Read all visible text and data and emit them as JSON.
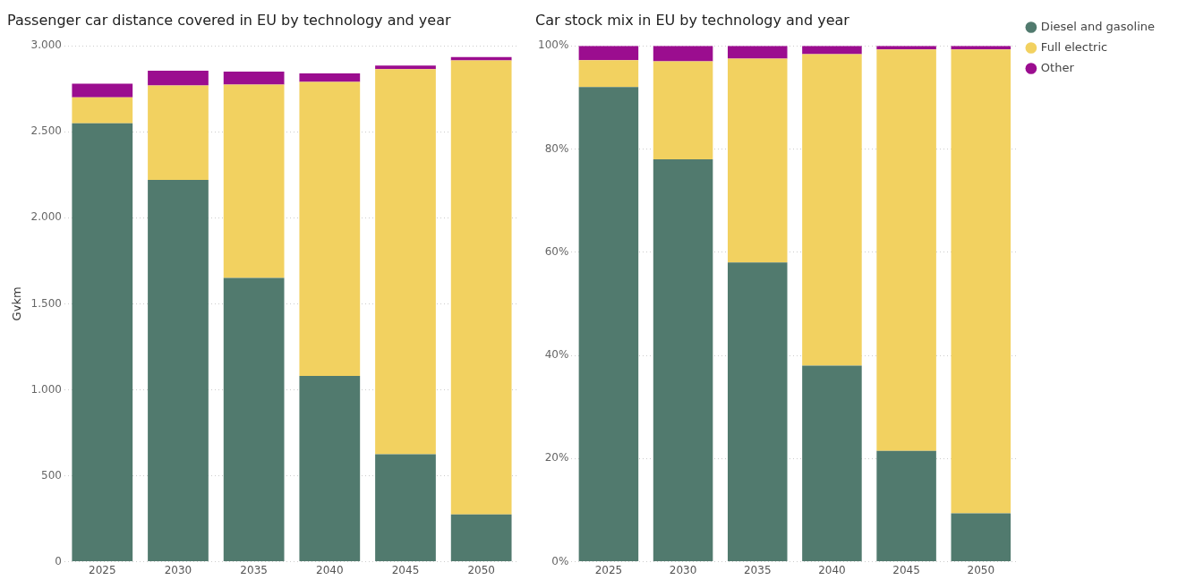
{
  "chart_data": [
    {
      "type": "bar",
      "title": "Passenger car distance covered in EU by technology and year",
      "ylabel": "Gvkm",
      "categories": [
        "2025",
        "2030",
        "2035",
        "2040",
        "2045",
        "2050"
      ],
      "stacked": true,
      "ylim": [
        0,
        3000
      ],
      "yticks": [
        0,
        {
          "value": 500,
          "label": "500"
        },
        {
          "value": 1000,
          "label": "1.000"
        },
        {
          "value": 1500,
          "label": "1.500"
        },
        {
          "value": 2000,
          "label": "2.000"
        },
        {
          "value": 2500,
          "label": "2.500"
        },
        {
          "value": 3000,
          "label": "3.000"
        }
      ],
      "grid": "y",
      "legend": false,
      "series": [
        {
          "color": "#517a6e",
          "values": [
            2550,
            2220,
            1650,
            1080,
            625,
            275
          ]
        },
        {
          "color": "#f2d160",
          "values": [
            150,
            550,
            1125,
            1710,
            2240,
            2640
          ]
        },
        {
          "color": "#9b0d8f",
          "values": [
            80,
            85,
            75,
            50,
            20,
            20
          ]
        }
      ]
    },
    {
      "type": "bar",
      "title": "Car stock mix in EU by technology and year",
      "categories": [
        "2025",
        "2030",
        "2035",
        "2040",
        "2045",
        "2050"
      ],
      "stacked": true,
      "ylim": [
        0,
        100
      ],
      "yticks": [
        {
          "value": 0,
          "label": "0%"
        },
        {
          "value": 20,
          "label": "20%"
        },
        {
          "value": 40,
          "label": "40%"
        },
        {
          "value": 60,
          "label": "60%"
        },
        {
          "value": 80,
          "label": "80%"
        },
        {
          "value": 100,
          "label": "100%"
        }
      ],
      "grid": "y",
      "legend": "top right",
      "series": [
        {
          "name": "Diesel and gasoline",
          "color": "#517a6e",
          "values": [
            92,
            78,
            58,
            38,
            21.5,
            9.4
          ]
        },
        {
          "name": "Full electric",
          "color": "#f2d160",
          "values": [
            5.2,
            19,
            39.5,
            60.4,
            77.8,
            89.9
          ]
        },
        {
          "name": "Other",
          "color": "#9b0d8f",
          "values": [
            2.8,
            3,
            2.5,
            1.6,
            0.7,
            0.7
          ]
        }
      ]
    }
  ]
}
